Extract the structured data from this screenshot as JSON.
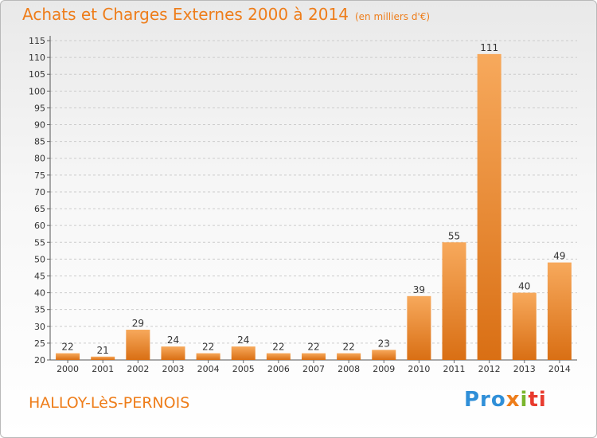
{
  "title": "Achats et Charges Externes 2000 à 2014",
  "unit": "(en milliers d'€)",
  "commune": "HALLOY-LèS-PERNOIS",
  "logo": {
    "p1": "Pro",
    "p2": "x",
    "p3": "i",
    "p4": "ti"
  },
  "colors": {
    "bar": "#f0882a",
    "bar_light": "#f7a95c",
    "bar_dark": "#d96f14",
    "accent": "#ee7d1a"
  },
  "chart_data": {
    "type": "bar",
    "title": "Achats et Charges Externes 2000 à 2014",
    "subtitle": "(en milliers d'€)",
    "xlabel": "",
    "ylabel": "",
    "categories": [
      "2000",
      "2001",
      "2002",
      "2003",
      "2004",
      "2005",
      "2006",
      "2007",
      "2008",
      "2009",
      "2010",
      "2011",
      "2012",
      "2013",
      "2014"
    ],
    "values": [
      22,
      21,
      29,
      24,
      22,
      24,
      22,
      22,
      22,
      23,
      39,
      55,
      111,
      40,
      49
    ],
    "ylim": [
      20,
      115
    ],
    "yticks": [
      20,
      25,
      30,
      35,
      40,
      45,
      50,
      55,
      60,
      65,
      70,
      75,
      80,
      85,
      90,
      95,
      100,
      105,
      110,
      115
    ],
    "grid": "horizontal dashed",
    "legend": "none"
  }
}
